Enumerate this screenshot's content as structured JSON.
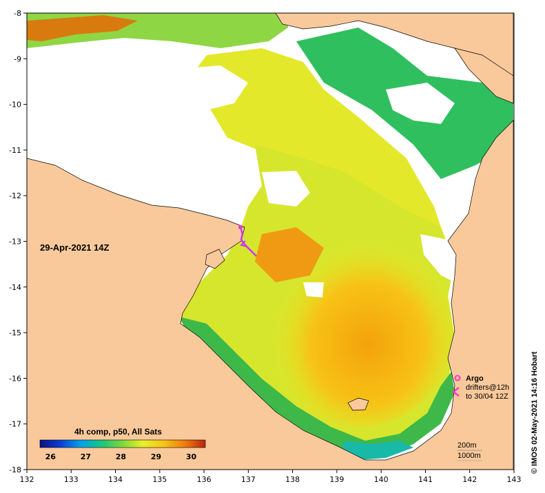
{
  "map": {
    "timestamp": "29-Apr-2021 14Z",
    "credit": "© IMOS 02-May-2021 14:16 Hobart",
    "lon_ticks": [
      "132",
      "133",
      "134",
      "135",
      "136",
      "137",
      "138",
      "139",
      "140",
      "141",
      "142",
      "143"
    ],
    "lat_ticks": [
      "-8",
      "-9",
      "-10",
      "-11",
      "-12",
      "-13",
      "-14",
      "-15",
      "-16",
      "-17",
      "-18"
    ],
    "lon_range": [
      132,
      143
    ],
    "lat_range": [
      -18,
      -8
    ]
  },
  "colorbar": {
    "title": "4h comp, p50, All Sats",
    "labels": [
      "26",
      "27",
      "28",
      "29",
      "30"
    ],
    "range": [
      25.7,
      30.4
    ]
  },
  "legend": {
    "argo_label": "Argo",
    "drifters_label": "drifters@12h",
    "drifters_until": "to 30/04 12Z",
    "contour_200": "200m",
    "contour_1000": "1000m"
  },
  "colors": {
    "land": "#f9c99b",
    "cloud": "#ffffff",
    "argo": "#ff33cc",
    "drifter": "#cc33ff",
    "warm_core": "#f7b30c",
    "coastal_cool": "#3fb84a"
  }
}
